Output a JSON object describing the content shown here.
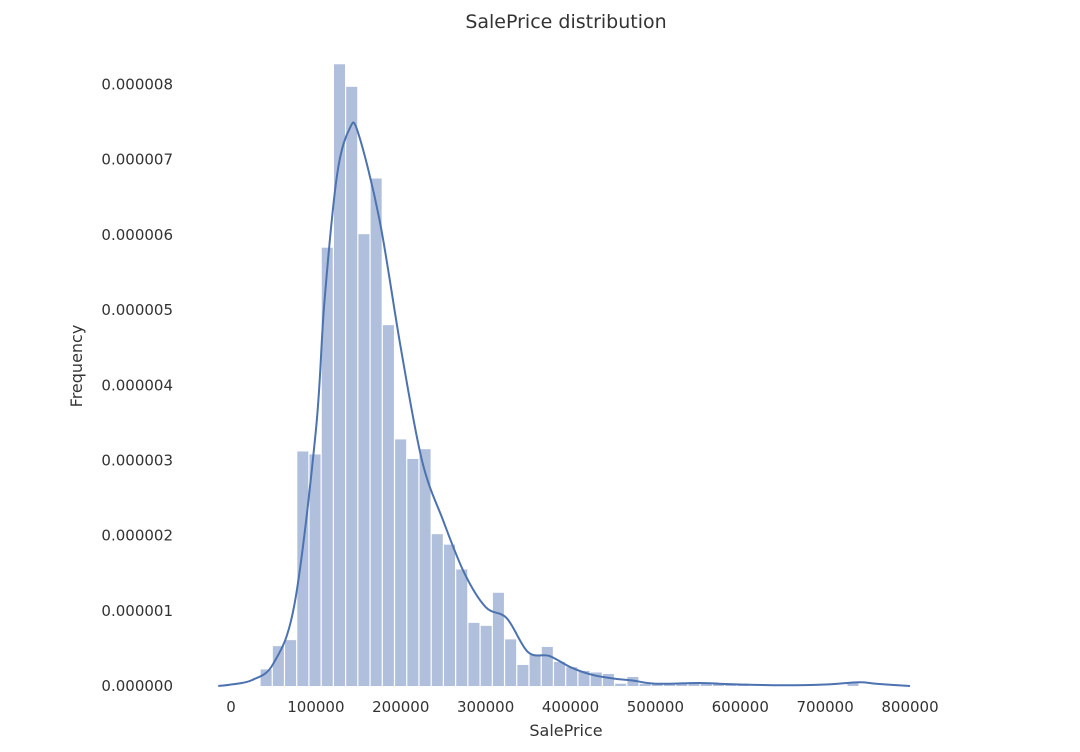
{
  "chart_data": {
    "type": "bar",
    "title": "SalePrice distribution",
    "xlabel": "SalePrice",
    "ylabel": "Frequency",
    "xlim": [
      0,
      800000
    ],
    "ylim": [
      0,
      8.3e-06
    ],
    "x_ticks": [
      "0",
      "100000",
      "200000",
      "300000",
      "400000",
      "500000",
      "600000",
      "700000",
      "800000"
    ],
    "y_ticks": [
      "0.000000",
      "0.000001",
      "0.000002",
      "0.000003",
      "0.000004",
      "0.000005",
      "0.000006",
      "0.000007",
      "0.000008"
    ],
    "grid": false,
    "bar_color": "#b0c0dc",
    "line_color": "#4c72b0",
    "histogram": {
      "bin_start": 34900,
      "bin_width": 14404,
      "density": [
        2.2e-07,
        5.3e-07,
        6.1e-07,
        3.12e-06,
        3.08e-06,
        5.83e-06,
        8.27e-06,
        7.97e-06,
        6.01e-06,
        6.75e-06,
        4.8e-06,
        3.28e-06,
        3.02e-06,
        3.15e-06,
        2.02e-06,
        1.88e-06,
        1.55e-06,
        8.4e-07,
        8e-07,
        1.24e-06,
        6.2e-07,
        2.8e-07,
        4.2e-07,
        5.2e-07,
        3.2e-07,
        2.5e-07,
        2e-07,
        1.8e-07,
        1.6e-07,
        3e-08,
        1.2e-07,
        3e-08,
        3e-08,
        3e-08,
        3e-08,
        5e-08,
        3e-08,
        3e-08,
        3e-08,
        3e-08,
        0,
        0,
        0,
        0,
        0,
        0,
        0,
        0,
        5e-08,
        0
      ]
    },
    "kde": {
      "x": [
        -15000,
        0,
        25000,
        50000,
        75000,
        100000,
        110000,
        125000,
        140000,
        150000,
        175000,
        200000,
        225000,
        250000,
        275000,
        300000,
        325000,
        350000,
        375000,
        400000,
        425000,
        450000,
        475000,
        500000,
        550000,
        575000,
        600000,
        650000,
        700000,
        740000,
        760000,
        800000
      ],
      "y": [
        0,
        2e-08,
        8e-08,
        3e-07,
        1.1e-06,
        3.4e-06,
        5.1e-06,
        6.8e-06,
        7.42e-06,
        7.35e-06,
        6.2e-06,
        4.5e-06,
        3e-06,
        2.2e-06,
        1.5e-06,
        1.05e-06,
        9e-07,
        4.5e-07,
        4e-07,
        2.5e-07,
        1.5e-07,
        1e-07,
        7e-08,
        3e-08,
        4e-08,
        3e-08,
        2e-08,
        1e-08,
        2e-08,
        5e-08,
        3e-08,
        0
      ]
    }
  }
}
